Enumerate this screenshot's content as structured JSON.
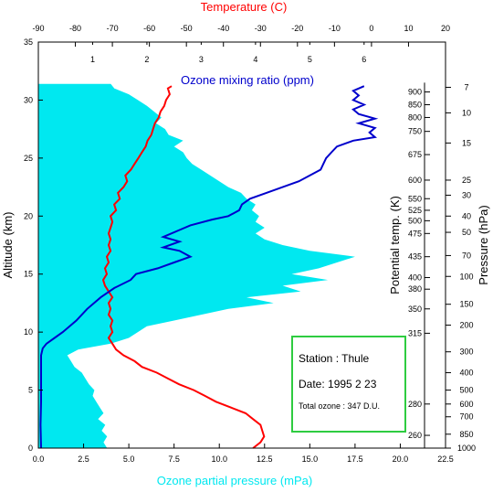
{
  "chart_data": {
    "type": "line",
    "x_bottom": {
      "label": "Ozone partial pressure (mPa)",
      "range": [
        0,
        22.5
      ],
      "ticks": [
        "0.0",
        "2.5",
        "5.0",
        "7.5",
        "10.0",
        "12.5",
        "15.0",
        "17.5",
        "20.0",
        "22.5"
      ],
      "color": "#00e8f0"
    },
    "x_top": {
      "label": "Temperature (C)",
      "range": [
        -90,
        20
      ],
      "ticks": [
        "-90",
        "-80",
        "-70",
        "-60",
        "-50",
        "-40",
        "-30",
        "-20",
        "-10",
        "0",
        "10",
        "20"
      ],
      "color": "#ff0000"
    },
    "x_inner": {
      "label": "Ozone mixing ratio (ppm)",
      "range": [
        0,
        7.5
      ],
      "ticks": [
        "1",
        "2",
        "3",
        "4",
        "5",
        "6"
      ],
      "color": "#0000cc"
    },
    "y_left": {
      "label": "Altitude (km)",
      "range": [
        0,
        35
      ],
      "ticks": [
        "0",
        "5",
        "10",
        "15",
        "20",
        "25",
        "30",
        "35"
      ]
    },
    "y_theta": {
      "label": "Potential temp. (K)",
      "ticks": [
        {
          "alt": 30.7,
          "label": "900"
        },
        {
          "alt": 29.6,
          "label": "850"
        },
        {
          "alt": 28.5,
          "label": "800"
        },
        {
          "alt": 27.3,
          "label": "750"
        },
        {
          "alt": 25.3,
          "label": "675"
        },
        {
          "alt": 23.1,
          "label": "600"
        },
        {
          "alt": 21.5,
          "label": "550"
        },
        {
          "alt": 20.5,
          "label": "525"
        },
        {
          "alt": 19.6,
          "label": "500"
        },
        {
          "alt": 18.5,
          "label": "475"
        },
        {
          "alt": 16.5,
          "label": "435"
        },
        {
          "alt": 14.7,
          "label": "400"
        },
        {
          "alt": 13.7,
          "label": "380"
        },
        {
          "alt": 12.0,
          "label": "350"
        },
        {
          "alt": 9.9,
          "label": "315"
        },
        {
          "alt": 3.8,
          "label": "280"
        },
        {
          "alt": 1.1,
          "label": "260"
        }
      ]
    },
    "y_pressure": {
      "label": "Pressure (hPa)",
      "ticks": [
        {
          "alt": 31.1,
          "label": "7"
        },
        {
          "alt": 28.9,
          "label": "10"
        },
        {
          "alt": 26.3,
          "label": "15"
        },
        {
          "alt": 23.1,
          "label": "25"
        },
        {
          "alt": 21.8,
          "label": "30"
        },
        {
          "alt": 20.0,
          "label": "40"
        },
        {
          "alt": 18.6,
          "label": "50"
        },
        {
          "alt": 16.6,
          "label": "70"
        },
        {
          "alt": 14.8,
          "label": "100"
        },
        {
          "alt": 12.4,
          "label": "150"
        },
        {
          "alt": 10.6,
          "label": "200"
        },
        {
          "alt": 8.3,
          "label": "300"
        },
        {
          "alt": 6.5,
          "label": "400"
        },
        {
          "alt": 5.0,
          "label": "500"
        },
        {
          "alt": 3.8,
          "label": "600"
        },
        {
          "alt": 2.7,
          "label": "700"
        },
        {
          "alt": 1.2,
          "label": "850"
        },
        {
          "alt": 0.0,
          "label": "1000"
        }
      ]
    },
    "series": [
      {
        "key": "ozone_pp",
        "color": "#00e8f0",
        "kind": "area",
        "axis": "bottom",
        "points": [
          [
            3.8,
            0
          ],
          [
            3.6,
            0.5
          ],
          [
            3.8,
            1
          ],
          [
            3.5,
            1.5
          ],
          [
            3.7,
            2
          ],
          [
            3.3,
            2.5
          ],
          [
            3.6,
            3
          ],
          [
            3.4,
            3.5
          ],
          [
            3.2,
            4
          ],
          [
            3.0,
            4.5
          ],
          [
            3.1,
            5
          ],
          [
            2.8,
            5.5
          ],
          [
            2.6,
            6
          ],
          [
            2.4,
            6.5
          ],
          [
            2.0,
            7
          ],
          [
            1.8,
            7.5
          ],
          [
            1.6,
            8
          ],
          [
            2.2,
            8.5
          ],
          [
            4.0,
            9
          ],
          [
            5.0,
            9.5
          ],
          [
            5.5,
            10
          ],
          [
            6.0,
            10.5
          ],
          [
            7.5,
            11
          ],
          [
            9.0,
            11.5
          ],
          [
            10.5,
            12
          ],
          [
            13.0,
            12.5
          ],
          [
            11.5,
            13
          ],
          [
            14.5,
            13.5
          ],
          [
            13.5,
            14
          ],
          [
            16.0,
            14.5
          ],
          [
            14.0,
            15
          ],
          [
            15.5,
            15.5
          ],
          [
            17.5,
            16.5
          ],
          [
            15.0,
            17
          ],
          [
            13.5,
            17.5
          ],
          [
            12.5,
            18
          ],
          [
            12.0,
            18.5
          ],
          [
            12.5,
            19
          ],
          [
            12.0,
            19.5
          ],
          [
            12.2,
            20
          ],
          [
            11.8,
            20.5
          ],
          [
            12.0,
            21
          ],
          [
            11.5,
            21.5
          ],
          [
            11.2,
            22
          ],
          [
            10.5,
            22.5
          ],
          [
            10.0,
            23
          ],
          [
            9.5,
            23.5
          ],
          [
            9.0,
            24
          ],
          [
            8.5,
            24.5
          ],
          [
            8.2,
            25
          ],
          [
            8.0,
            25.5
          ],
          [
            7.5,
            26
          ],
          [
            8.0,
            26.5
          ],
          [
            7.2,
            27
          ],
          [
            7.0,
            27.5
          ],
          [
            6.5,
            28
          ],
          [
            6.8,
            28.5
          ],
          [
            6.4,
            29
          ],
          [
            6.0,
            29.5
          ],
          [
            5.5,
            30
          ],
          [
            5.0,
            30.5
          ],
          [
            4.2,
            31
          ],
          [
            4.0,
            31.4
          ],
          [
            0,
            31.4
          ]
        ]
      },
      {
        "key": "temperature",
        "color": "#ff0000",
        "kind": "line",
        "axis": "top",
        "points": [
          [
            -32,
            0
          ],
          [
            -30,
            0.5
          ],
          [
            -29,
            1
          ],
          [
            -29.5,
            1.5
          ],
          [
            -30,
            2
          ],
          [
            -32,
            2.5
          ],
          [
            -34,
            3
          ],
          [
            -38,
            3.5
          ],
          [
            -42,
            4
          ],
          [
            -45,
            4.5
          ],
          [
            -48,
            5
          ],
          [
            -52,
            5.5
          ],
          [
            -55,
            6
          ],
          [
            -58,
            6.5
          ],
          [
            -62,
            7
          ],
          [
            -64,
            7.5
          ],
          [
            -67,
            8
          ],
          [
            -69,
            8.5
          ],
          [
            -70,
            9
          ],
          [
            -71,
            9.5
          ],
          [
            -70,
            10
          ],
          [
            -70.5,
            10.5
          ],
          [
            -70,
            11
          ],
          [
            -71,
            11.5
          ],
          [
            -70.5,
            12
          ],
          [
            -71,
            12.5
          ],
          [
            -70,
            13
          ],
          [
            -71,
            13.5
          ],
          [
            -72,
            14
          ],
          [
            -72.5,
            14.5
          ],
          [
            -71.5,
            15
          ],
          [
            -72,
            15.5
          ],
          [
            -71,
            16
          ],
          [
            -71.5,
            16.5
          ],
          [
            -70.5,
            17
          ],
          [
            -71,
            17.5
          ],
          [
            -70.5,
            18
          ],
          [
            -71,
            18.5
          ],
          [
            -70.5,
            19
          ],
          [
            -70,
            19.5
          ],
          [
            -70.5,
            20
          ],
          [
            -69,
            20.5
          ],
          [
            -69.5,
            21
          ],
          [
            -68,
            21.5
          ],
          [
            -68.5,
            22
          ],
          [
            -67,
            22.5
          ],
          [
            -66,
            23
          ],
          [
            -66.5,
            23.5
          ],
          [
            -65,
            24
          ],
          [
            -64,
            24.5
          ],
          [
            -63,
            25
          ],
          [
            -62,
            25.5
          ],
          [
            -61,
            26
          ],
          [
            -60.5,
            26.5
          ],
          [
            -59.5,
            27
          ],
          [
            -59,
            27.5
          ],
          [
            -58.5,
            28
          ],
          [
            -57.5,
            28.5
          ],
          [
            -57,
            29
          ],
          [
            -56,
            29.5
          ],
          [
            -55.5,
            30
          ],
          [
            -54.5,
            30.5
          ],
          [
            -55,
            31
          ],
          [
            -54,
            31.2
          ]
        ]
      },
      {
        "key": "ozone_mr",
        "color": "#0000cc",
        "kind": "line",
        "axis": "inner",
        "points": [
          [
            0.05,
            0
          ],
          [
            0.04,
            2
          ],
          [
            0.05,
            4
          ],
          [
            0.05,
            6
          ],
          [
            0.05,
            7
          ],
          [
            0.05,
            8
          ],
          [
            0.08,
            8.6
          ],
          [
            0.15,
            9
          ],
          [
            0.3,
            9.5
          ],
          [
            0.45,
            10
          ],
          [
            0.7,
            11
          ],
          [
            0.9,
            12
          ],
          [
            1.15,
            13
          ],
          [
            1.4,
            13.8
          ],
          [
            1.7,
            14.5
          ],
          [
            1.8,
            15
          ],
          [
            2.2,
            15.5
          ],
          [
            2.5,
            16
          ],
          [
            2.8,
            16.5
          ],
          [
            2.6,
            17
          ],
          [
            2.3,
            17.3
          ],
          [
            2.6,
            17.8
          ],
          [
            2.3,
            18.2
          ],
          [
            2.6,
            18.8
          ],
          [
            2.8,
            19.2
          ],
          [
            3.2,
            19.7
          ],
          [
            3.5,
            20
          ],
          [
            3.7,
            20.5
          ],
          [
            3.75,
            21
          ],
          [
            3.9,
            21.5
          ],
          [
            4.2,
            22
          ],
          [
            4.5,
            22.5
          ],
          [
            4.8,
            23
          ],
          [
            5.0,
            23.5
          ],
          [
            5.2,
            24
          ],
          [
            5.25,
            24.5
          ],
          [
            5.3,
            25
          ],
          [
            5.4,
            25.5
          ],
          [
            5.5,
            26
          ],
          [
            5.8,
            26.5
          ],
          [
            6.2,
            26.8
          ],
          [
            6.1,
            27.2
          ],
          [
            6.2,
            27.6
          ],
          [
            5.9,
            28
          ],
          [
            6.2,
            28.4
          ],
          [
            5.9,
            28.8
          ],
          [
            5.8,
            29.2
          ],
          [
            6.0,
            29.6
          ],
          [
            5.8,
            30
          ],
          [
            5.9,
            30.4
          ],
          [
            5.8,
            30.8
          ],
          [
            6.0,
            31.2
          ]
        ]
      }
    ],
    "legend": {
      "line1": "Station : Thule",
      "line2": "Date: 1995  2 23",
      "line3": "Total ozone : 347 D.U."
    },
    "grid": false
  }
}
